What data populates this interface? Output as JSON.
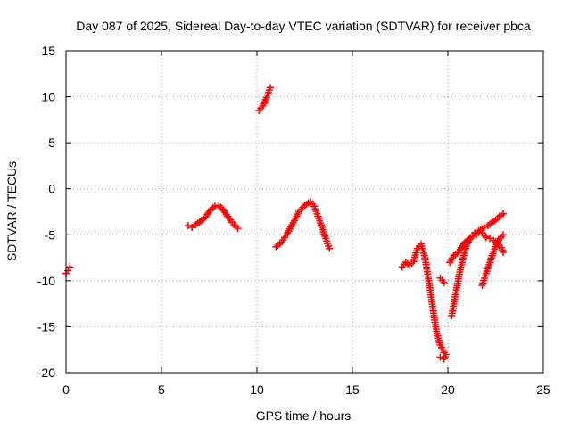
{
  "chart_data": {
    "type": "scatter",
    "title": "Day 087 of 2025, Sidereal Day-to-day VTEC variation (SDTVAR) for receiver pbca",
    "xlabel": "GPS time / hours",
    "ylabel": "SDTVAR / TECUs",
    "xlim": [
      0,
      25
    ],
    "ylim": [
      -20,
      15
    ],
    "xticks": [
      "0",
      "5",
      "10",
      "15",
      "20",
      "25"
    ],
    "yticks": [
      "15",
      "10",
      "5",
      "0",
      "-5",
      "-10",
      "-15",
      "-20"
    ],
    "grid": true,
    "marker": "plus",
    "color": "#ff0000",
    "series": [
      {
        "segments": [
          {
            "x": [
              0.0,
              0.1,
              0.2
            ],
            "y": [
              -9.2,
              -8.9,
              -8.5
            ]
          },
          {
            "x": [
              6.4,
              6.6,
              6.8,
              7.0,
              7.2,
              7.4,
              7.6,
              7.8,
              8.0,
              8.2,
              8.4,
              8.6,
              8.8,
              9.0
            ],
            "y": [
              -4.0,
              -4.2,
              -3.9,
              -3.6,
              -3.3,
              -2.8,
              -2.2,
              -1.9,
              -1.8,
              -2.2,
              -2.8,
              -3.4,
              -3.9,
              -4.3
            ]
          },
          {
            "x": [
              10.1,
              10.3,
              10.5,
              10.7
            ],
            "y": [
              8.5,
              9.0,
              9.9,
              11.0
            ]
          },
          {
            "x": [
              11.0,
              11.3,
              11.6,
              11.9,
              12.2,
              12.5,
              12.8,
              13.0,
              13.2,
              13.4,
              13.6,
              13.8
            ],
            "y": [
              -6.3,
              -5.8,
              -4.8,
              -3.7,
              -2.5,
              -1.8,
              -1.4,
              -1.9,
              -3.0,
              -4.2,
              -5.4,
              -6.5
            ]
          },
          {
            "x": [
              17.6,
              17.8,
              18.0,
              18.2,
              18.4,
              18.6,
              18.8,
              19.0,
              19.2,
              19.4,
              19.6,
              19.8
            ],
            "y": [
              -8.5,
              -8.0,
              -8.3,
              -7.9,
              -6.5,
              -6.0,
              -7.5,
              -10.0,
              -12.8,
              -15.5,
              -17.0,
              -17.8
            ]
          },
          {
            "x": [
              19.6,
              19.8
            ],
            "y": [
              -9.7,
              -10.2
            ]
          },
          {
            "x": [
              19.6,
              19.8,
              19.9
            ],
            "y": [
              -18.3,
              -18.5,
              -18.0
            ]
          },
          {
            "x": [
              20.2,
              20.4,
              20.6,
              20.8,
              21.0,
              21.2,
              21.4,
              21.6,
              21.8,
              22.0
            ],
            "y": [
              -13.8,
              -11.5,
              -9.3,
              -7.5,
              -6.0,
              -5.3,
              -4.8,
              -4.6,
              -4.8,
              -5.3
            ]
          },
          {
            "x": [
              20.1,
              20.3,
              20.5,
              20.7,
              20.9,
              21.1,
              21.3,
              21.5,
              21.7,
              21.9,
              22.1,
              22.3,
              22.5,
              22.7,
              22.9
            ],
            "y": [
              -8.0,
              -7.3,
              -7.0,
              -6.4,
              -5.8,
              -5.5,
              -5.2,
              -5.0,
              -4.5,
              -4.2,
              -4.0,
              -3.7,
              -3.4,
              -3.0,
              -2.7
            ]
          },
          {
            "x": [
              21.8,
              22.0,
              22.2,
              22.4,
              22.6,
              22.8,
              22.9
            ],
            "y": [
              -10.5,
              -9.2,
              -8.0,
              -6.8,
              -5.8,
              -5.2,
              -5.0
            ]
          },
          {
            "x": [
              22.0,
              22.2,
              22.4,
              22.6,
              22.8,
              22.9
            ],
            "y": [
              -5.2,
              -5.4,
              -5.6,
              -5.9,
              -6.4,
              -6.9
            ]
          }
        ]
      }
    ]
  }
}
